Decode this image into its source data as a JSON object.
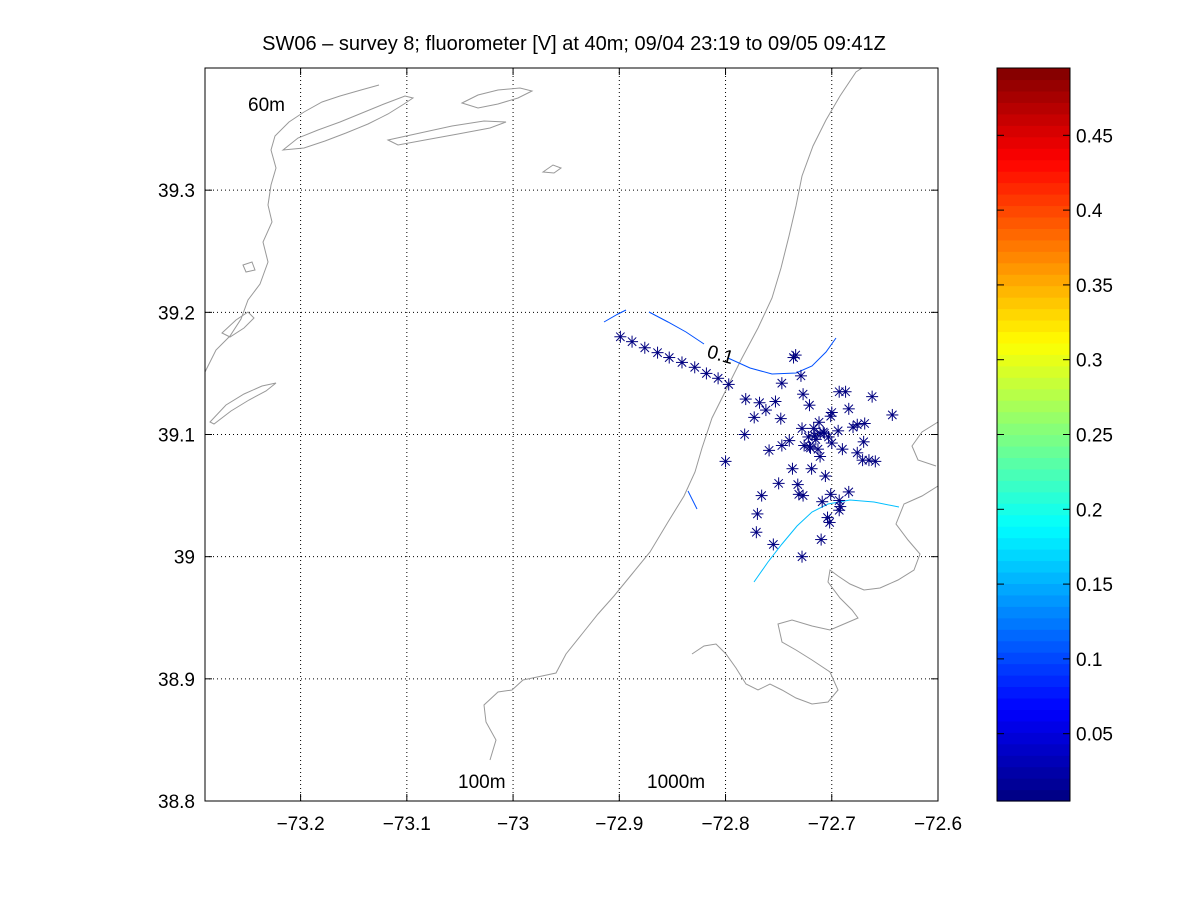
{
  "chart_data": {
    "type": "scatter",
    "title": "SW06 – survey 8; fluorometer [V] at 40m; 09/04 23:19 to 09/05 09:41Z",
    "xlabel": "",
    "ylabel": "",
    "xlim": [
      -73.29,
      -72.6
    ],
    "ylim": [
      38.8,
      39.4
    ],
    "xticks": [
      -73.2,
      -73.1,
      -73.0,
      -72.9,
      -72.8,
      -72.7,
      -72.6
    ],
    "xtick_labels": [
      "−73.2",
      "−73.1",
      "−73",
      "−72.9",
      "−72.8",
      "−72.7",
      "−72.6"
    ],
    "yticks": [
      38.8,
      38.9,
      39.0,
      39.1,
      39.2,
      39.3
    ],
    "ytick_labels": [
      "38.8",
      "38.9",
      "39",
      "39.1",
      "39.2",
      "39.3"
    ],
    "grid": true,
    "marker": "asterisk",
    "marker_color": "#000080",
    "bathymetry_labels": [
      "60m",
      "100m",
      "1000m"
    ],
    "contour_label": "0.1",
    "points": {
      "x": [
        -72.899,
        -72.888,
        -72.876,
        -72.864,
        -72.853,
        -72.841,
        -72.829,
        -72.818,
        -72.807,
        -72.797,
        -72.781,
        -72.768,
        -72.762,
        -72.753,
        -72.747,
        -72.729,
        -72.727,
        -72.736,
        -72.734,
        -72.721,
        -72.717,
        -72.712,
        -72.707,
        -72.7,
        -72.701,
        -72.693,
        -72.687,
        -72.684,
        -72.676,
        -72.669,
        -72.662,
        -72.659,
        -72.643,
        -72.782,
        -72.773,
        -72.759,
        -72.748,
        -72.728,
        -72.722,
        -72.715,
        -72.711,
        -72.708,
        -72.703,
        -72.694,
        -72.68,
        -72.67,
        -72.665,
        -72.74,
        -72.726,
        -72.72,
        -72.713,
        -72.7,
        -72.69,
        -72.676,
        -72.671,
        -72.8,
        -72.737,
        -72.732,
        -72.719,
        -72.706,
        -72.711,
        -72.701,
        -72.693,
        -72.684,
        -72.75,
        -72.766,
        -72.747,
        -72.731,
        -72.727,
        -72.709,
        -72.692,
        -72.704,
        -72.77,
        -72.771,
        -72.755,
        -72.728,
        -72.71,
        -72.702,
        -72.693,
        -72.721,
        -72.716
      ],
      "y": [
        39.18,
        39.176,
        39.171,
        39.167,
        39.163,
        39.159,
        39.155,
        39.15,
        39.146,
        39.141,
        39.129,
        39.126,
        39.12,
        39.127,
        39.142,
        39.148,
        39.133,
        39.163,
        39.165,
        39.124,
        39.105,
        39.11,
        39.101,
        39.118,
        39.115,
        39.135,
        39.135,
        39.121,
        39.108,
        39.109,
        39.131,
        39.078,
        39.116,
        39.1,
        39.114,
        39.087,
        39.113,
        39.105,
        39.098,
        39.096,
        39.101,
        39.102,
        39.098,
        39.103,
        39.106,
        39.094,
        39.079,
        39.095,
        39.091,
        39.089,
        39.088,
        39.093,
        39.088,
        39.085,
        39.079,
        39.078,
        39.072,
        39.059,
        39.072,
        39.066,
        39.082,
        39.051,
        39.046,
        39.053,
        39.06,
        39.05,
        39.091,
        39.051,
        39.05,
        39.045,
        39.041,
        39.032,
        39.035,
        39.02,
        39.01,
        39.0,
        39.014,
        39.028,
        39.038,
        39.09,
        39.099
      ]
    }
  },
  "colorbar": {
    "ticks": [
      0.05,
      0.1,
      0.15,
      0.2,
      0.25,
      0.3,
      0.35,
      0.4,
      0.45
    ],
    "tick_labels": [
      "0.05",
      "0.1",
      "0.15",
      "0.2",
      "0.25",
      "0.3",
      "0.35",
      "0.4",
      "0.45"
    ],
    "range": [
      0.005,
      0.495
    ],
    "colormap": "jet"
  },
  "colors": {
    "bathymetry": "#999999",
    "grid": "#000000",
    "contour_low": "#0050ff",
    "contour_mid": "#00bfff"
  }
}
